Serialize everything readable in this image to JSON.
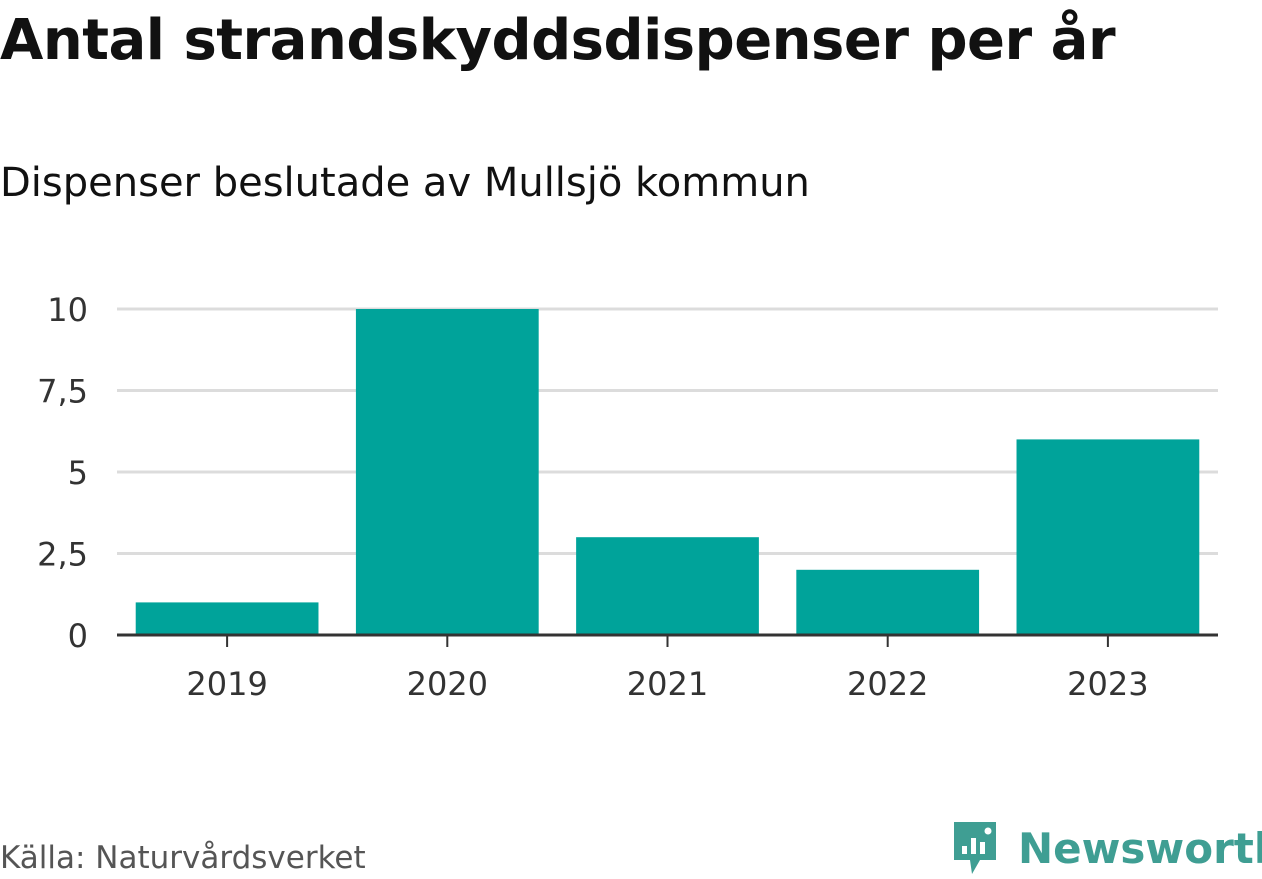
{
  "title": "Antal strandskyddsdispenser per år",
  "subtitle": "Dispenser beslutade av Mullsjö kommun",
  "source": "Källa: Naturvårdsverket",
  "brand": {
    "name": "Newsworthy",
    "icon": "newsworthy-logo-icon",
    "color": "#3f9e93"
  },
  "chart_data": {
    "type": "bar",
    "categories": [
      "2019",
      "2020",
      "2021",
      "2022",
      "2023"
    ],
    "values": [
      1,
      10,
      3,
      2,
      6
    ],
    "yticks": [
      0,
      2.5,
      5,
      7.5,
      10
    ],
    "ytick_labels": [
      "0",
      "2,5",
      "5",
      "7,5",
      "10"
    ],
    "ylim": [
      0,
      10
    ],
    "bar_color": "#00a39a",
    "grid": true,
    "title": "Antal strandskyddsdispenser per år",
    "subtitle": "Dispenser beslutade av Mullsjö kommun"
  }
}
